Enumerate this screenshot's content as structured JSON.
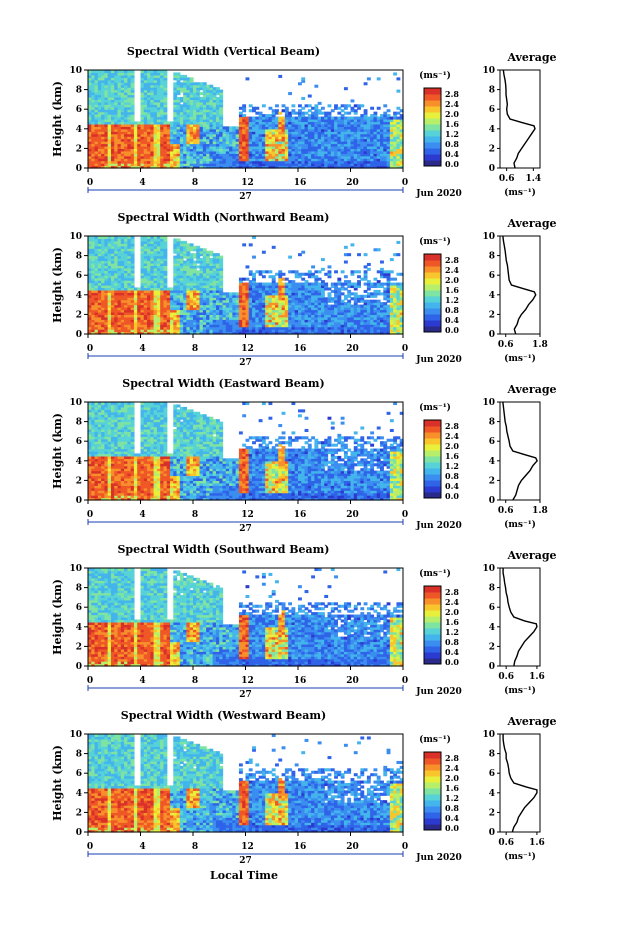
{
  "x_axis_label": "Local Time",
  "date_label": "27",
  "month_label": "Jun 2020",
  "colorbar_unit": "(ms⁻¹)",
  "average_title": "Average",
  "average_unit": "(ms⁻¹)",
  "colorbar_ticks": [
    "2.8",
    "2.4",
    "2.0",
    "1.6",
    "1.2",
    "0.8",
    "0.4",
    "0.0"
  ],
  "colormap": [
    "#2a2a8a",
    "#2b3bd0",
    "#2f63e8",
    "#3b8ef0",
    "#44b4ec",
    "#57d2d6",
    "#7fe3a2",
    "#b7ef6a",
    "#e8f03c",
    "#f9c52c",
    "#f7902a",
    "#ef5826",
    "#d9302a"
  ],
  "chart_data": [
    {
      "type": "heatmap",
      "title": "Spectral Width (Vertical Beam)",
      "ylabel": "Height (km)",
      "xlabel": "Local Time",
      "x_ticks": [
        "0",
        "4",
        "8",
        "12",
        "16",
        "20",
        "0"
      ],
      "y_ticks": [
        "0",
        "2",
        "4",
        "6",
        "8",
        "10"
      ],
      "xlim": [
        0,
        24
      ],
      "ylim": [
        0,
        10
      ],
      "colorbar_range": [
        0,
        3.0
      ],
      "average": {
        "xlabel": "(ms⁻¹)",
        "x_ticks": [
          "0.6",
          "1.4"
        ],
        "xlim": [
          0.4,
          1.6
        ],
        "y_ticks": [
          "0",
          "2",
          "4",
          "6",
          "8",
          "10"
        ],
        "height_km": [
          0,
          0.5,
          1,
          1.5,
          2,
          2.5,
          3,
          3.5,
          4,
          4.3,
          4.6,
          5,
          5.5,
          6,
          6.5,
          7,
          7.5,
          8,
          8.5,
          9,
          9.5,
          10
        ],
        "width": [
          0.85,
          0.82,
          0.9,
          0.95,
          1.05,
          1.15,
          1.25,
          1.35,
          1.45,
          1.42,
          1.1,
          0.7,
          0.62,
          0.6,
          0.62,
          0.6,
          0.58,
          0.58,
          0.57,
          0.55,
          0.52,
          0.5
        ]
      }
    },
    {
      "type": "heatmap",
      "title": "Spectral Width (Northward Beam)",
      "ylabel": "Height (km)",
      "xlabel": "Local Time",
      "x_ticks": [
        "0",
        "4",
        "8",
        "12",
        "16",
        "20",
        "0"
      ],
      "y_ticks": [
        "0",
        "2",
        "4",
        "6",
        "8",
        "10"
      ],
      "xlim": [
        0,
        24
      ],
      "ylim": [
        0,
        10
      ],
      "colorbar_range": [
        0,
        3.0
      ],
      "average": {
        "xlabel": "(ms⁻¹)",
        "x_ticks": [
          "0.6",
          "1.8"
        ],
        "xlim": [
          0.4,
          1.8
        ],
        "y_ticks": [
          "0",
          "2",
          "4",
          "6",
          "8",
          "10"
        ],
        "height_km": [
          0,
          0.5,
          1,
          1.5,
          2,
          2.5,
          3,
          3.5,
          4,
          4.3,
          4.6,
          5,
          5.5,
          6,
          6.5,
          7,
          7.5,
          8,
          8.5,
          9,
          9.5,
          10
        ],
        "width": [
          0.95,
          0.9,
          1.0,
          1.05,
          1.15,
          1.3,
          1.4,
          1.55,
          1.65,
          1.6,
          1.25,
          0.8,
          0.72,
          0.7,
          0.68,
          0.66,
          0.62,
          0.6,
          0.58,
          0.55,
          0.52,
          0.5
        ]
      }
    },
    {
      "type": "heatmap",
      "title": "Spectral Width (Eastward Beam)",
      "ylabel": "Height (km)",
      "xlabel": "Local Time",
      "x_ticks": [
        "0",
        "4",
        "8",
        "12",
        "16",
        "20",
        "0"
      ],
      "y_ticks": [
        "0",
        "2",
        "4",
        "6",
        "8",
        "10"
      ],
      "xlim": [
        0,
        24
      ],
      "ylim": [
        0,
        10
      ],
      "colorbar_range": [
        0,
        3.0
      ],
      "average": {
        "xlabel": "(ms⁻¹)",
        "x_ticks": [
          "0.6",
          "1.8"
        ],
        "xlim": [
          0.4,
          1.8
        ],
        "y_ticks": [
          "0",
          "2",
          "4",
          "6",
          "8",
          "10"
        ],
        "height_km": [
          0,
          0.5,
          1,
          1.5,
          2,
          2.5,
          3,
          3.5,
          4,
          4.3,
          4.6,
          5,
          5.5,
          6,
          6.5,
          7,
          7.5,
          8,
          8.5,
          9,
          9.5,
          10
        ],
        "width": [
          0.85,
          0.95,
          1.0,
          1.05,
          1.15,
          1.3,
          1.45,
          1.55,
          1.7,
          1.65,
          1.3,
          0.85,
          0.75,
          0.72,
          0.68,
          0.64,
          0.62,
          0.58,
          0.56,
          0.54,
          0.52,
          0.5
        ]
      }
    },
    {
      "type": "heatmap",
      "title": "Spectral Width (Southward Beam)",
      "ylabel": "Height (km)",
      "xlabel": "Local Time",
      "x_ticks": [
        "0",
        "4",
        "8",
        "12",
        "16",
        "20",
        "0"
      ],
      "y_ticks": [
        "0",
        "2",
        "4",
        "6",
        "8",
        "10"
      ],
      "xlim": [
        0,
        24
      ],
      "ylim": [
        0,
        10
      ],
      "colorbar_range": [
        0,
        3.0
      ],
      "average": {
        "xlabel": "(ms⁻¹)",
        "x_ticks": [
          "0.6",
          "1.6"
        ],
        "xlim": [
          0.4,
          1.7
        ],
        "y_ticks": [
          "0",
          "2",
          "4",
          "6",
          "8",
          "10"
        ],
        "height_km": [
          0,
          0.5,
          1,
          1.5,
          2,
          2.5,
          3,
          3.5,
          4,
          4.3,
          4.6,
          5,
          5.5,
          6,
          6.5,
          7,
          7.5,
          8,
          8.5,
          9,
          9.5,
          10
        ],
        "width": [
          0.85,
          0.88,
          0.95,
          1.0,
          1.1,
          1.2,
          1.35,
          1.5,
          1.6,
          1.58,
          1.2,
          0.85,
          0.75,
          0.7,
          0.66,
          0.64,
          0.6,
          0.58,
          0.55,
          0.53,
          0.5,
          0.5
        ]
      }
    },
    {
      "type": "heatmap",
      "title": "Spectral Width (Westward Beam)",
      "ylabel": "Height (km)",
      "xlabel": "Local Time",
      "x_ticks": [
        "0",
        "4",
        "8",
        "12",
        "16",
        "20",
        "0"
      ],
      "y_ticks": [
        "0",
        "2",
        "4",
        "6",
        "8",
        "10"
      ],
      "xlim": [
        0,
        24
      ],
      "ylim": [
        0,
        10
      ],
      "colorbar_range": [
        0,
        3.0
      ],
      "average": {
        "xlabel": "(ms⁻¹)",
        "x_ticks": [
          "0.6",
          "1.6"
        ],
        "xlim": [
          0.4,
          1.7
        ],
        "y_ticks": [
          "0",
          "2",
          "4",
          "6",
          "8",
          "10"
        ],
        "height_km": [
          0,
          0.5,
          1,
          1.5,
          2,
          2.5,
          3,
          3.5,
          4,
          4.3,
          4.6,
          5,
          5.5,
          6,
          6.5,
          7,
          7.5,
          8,
          8.5,
          9,
          9.5,
          10
        ],
        "width": [
          0.8,
          0.85,
          0.95,
          1.0,
          1.1,
          1.2,
          1.35,
          1.5,
          1.6,
          1.6,
          1.25,
          0.85,
          0.75,
          0.7,
          0.68,
          0.65,
          0.6,
          0.6,
          0.55,
          0.52,
          0.5,
          0.5
        ]
      }
    }
  ]
}
